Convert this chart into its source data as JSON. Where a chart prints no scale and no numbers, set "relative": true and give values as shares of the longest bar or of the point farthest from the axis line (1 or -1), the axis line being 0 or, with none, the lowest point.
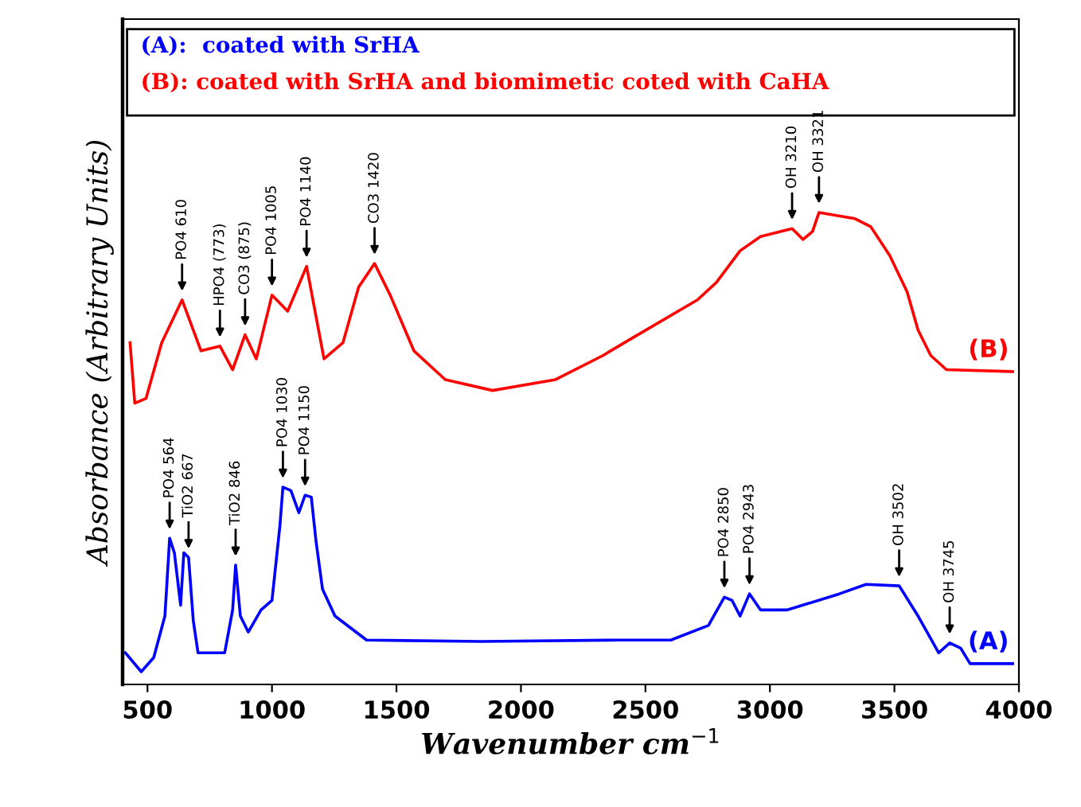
{
  "chart_data": {
    "type": "line",
    "relative": true,
    "xlabel": "Wavenumber cm$^{−1}$",
    "ylabel": "Absorbance (Arbitrary Units)",
    "xlim": [
      400,
      4000
    ],
    "xticks": [
      500,
      1000,
      1500,
      2000,
      2500,
      3000,
      3500,
      4000
    ],
    "tick_labels": "x",
    "grid": false,
    "legend": false,
    "marker": "none",
    "line_style": "solid",
    "series": [
      {
        "name": "(A)",
        "color": "#0000ff",
        "x": [
          411,
          475,
          525,
          570,
          589,
          608,
          633,
          646,
          665,
          684,
          703,
          810,
          842,
          854,
          873,
          905,
          956,
          1000,
          1032,
          1044,
          1076,
          1108,
          1133,
          1158,
          1177,
          1203,
          1253,
          1380,
          1842,
          2393,
          2602,
          2753,
          2817,
          2848,
          2880,
          2918,
          2962,
          3070,
          3279,
          3386,
          3519,
          3595,
          3678,
          3722,
          3766,
          3804,
          3975
        ],
        "values": [
          0.067,
          0.027,
          0.057,
          0.145,
          0.31,
          0.279,
          0.168,
          0.279,
          0.269,
          0.135,
          0.067,
          0.067,
          0.158,
          0.253,
          0.145,
          0.111,
          0.158,
          0.178,
          0.337,
          0.418,
          0.411,
          0.364,
          0.401,
          0.397,
          0.303,
          0.202,
          0.145,
          0.094,
          0.091,
          0.094,
          0.094,
          0.125,
          0.185,
          0.178,
          0.145,
          0.192,
          0.158,
          0.158,
          0.192,
          0.212,
          0.209,
          0.145,
          0.067,
          0.088,
          0.077,
          0.044,
          0.044
        ]
      },
      {
        "name": "(B)",
        "color": "#ff0000",
        "x": [
          430,
          449,
          494,
          557,
          639,
          715,
          791,
          842,
          892,
          937,
          1000,
          1063,
          1139,
          1209,
          1285,
          1348,
          1412,
          1475,
          1570,
          1696,
          1886,
          2139,
          2329,
          2437,
          2709,
          2785,
          2880,
          2962,
          3089,
          3133,
          3171,
          3197,
          3342,
          3405,
          3481,
          3551,
          3595,
          3646,
          3709,
          3975
        ],
        "values": [
          0.724,
          0.596,
          0.606,
          0.724,
          0.815,
          0.707,
          0.717,
          0.667,
          0.741,
          0.69,
          0.825,
          0.791,
          0.886,
          0.69,
          0.724,
          0.842,
          0.892,
          0.825,
          0.707,
          0.646,
          0.623,
          0.646,
          0.697,
          0.731,
          0.815,
          0.852,
          0.919,
          0.949,
          0.966,
          0.943,
          0.96,
          1.0,
          0.987,
          0.97,
          0.909,
          0.832,
          0.751,
          0.697,
          0.667,
          0.663
        ]
      }
    ],
    "annotations": [
      "(A):  coated with SrHA",
      "(B): coated with SrHA and biomimetic coted with CaHA",
      {
        "text": "PO4 610",
        "x": 639,
        "y": 0.815
      },
      {
        "text": "HPO4 (773)",
        "x": 791,
        "y": 0.717
      },
      {
        "text": "CO3 (875)",
        "x": 892,
        "y": 0.741
      },
      {
        "text": "PO4 1005",
        "x": 1000,
        "y": 0.825
      },
      {
        "text": "PO4 1140",
        "x": 1139,
        "y": 0.886
      },
      {
        "text": "CO3 1420",
        "x": 1412,
        "y": 0.892
      },
      {
        "text": "OH 3210",
        "x": 3089,
        "y": 0.966
      },
      {
        "text": "OH 3321",
        "x": 3197,
        "y": 1.0
      },
      {
        "text": "PO4 564",
        "x": 589,
        "y": 0.31
      },
      {
        "text": "TiO2 667",
        "x": 665,
        "y": 0.269
      },
      {
        "text": "TiO2 846",
        "x": 854,
        "y": 0.253
      },
      {
        "text": "PO4 1030",
        "x": 1044,
        "y": 0.418
      },
      {
        "text": "PO4 1150",
        "x": 1133,
        "y": 0.401
      },
      {
        "text": "PO4 2850",
        "x": 2817,
        "y": 0.185
      },
      {
        "text": "PO4 2943",
        "x": 2918,
        "y": 0.192
      },
      {
        "text": "OH 3502",
        "x": 3519,
        "y": 0.209
      },
      {
        "text": "OH 3745",
        "x": 3722,
        "y": 0.088
      }
    ]
  }
}
